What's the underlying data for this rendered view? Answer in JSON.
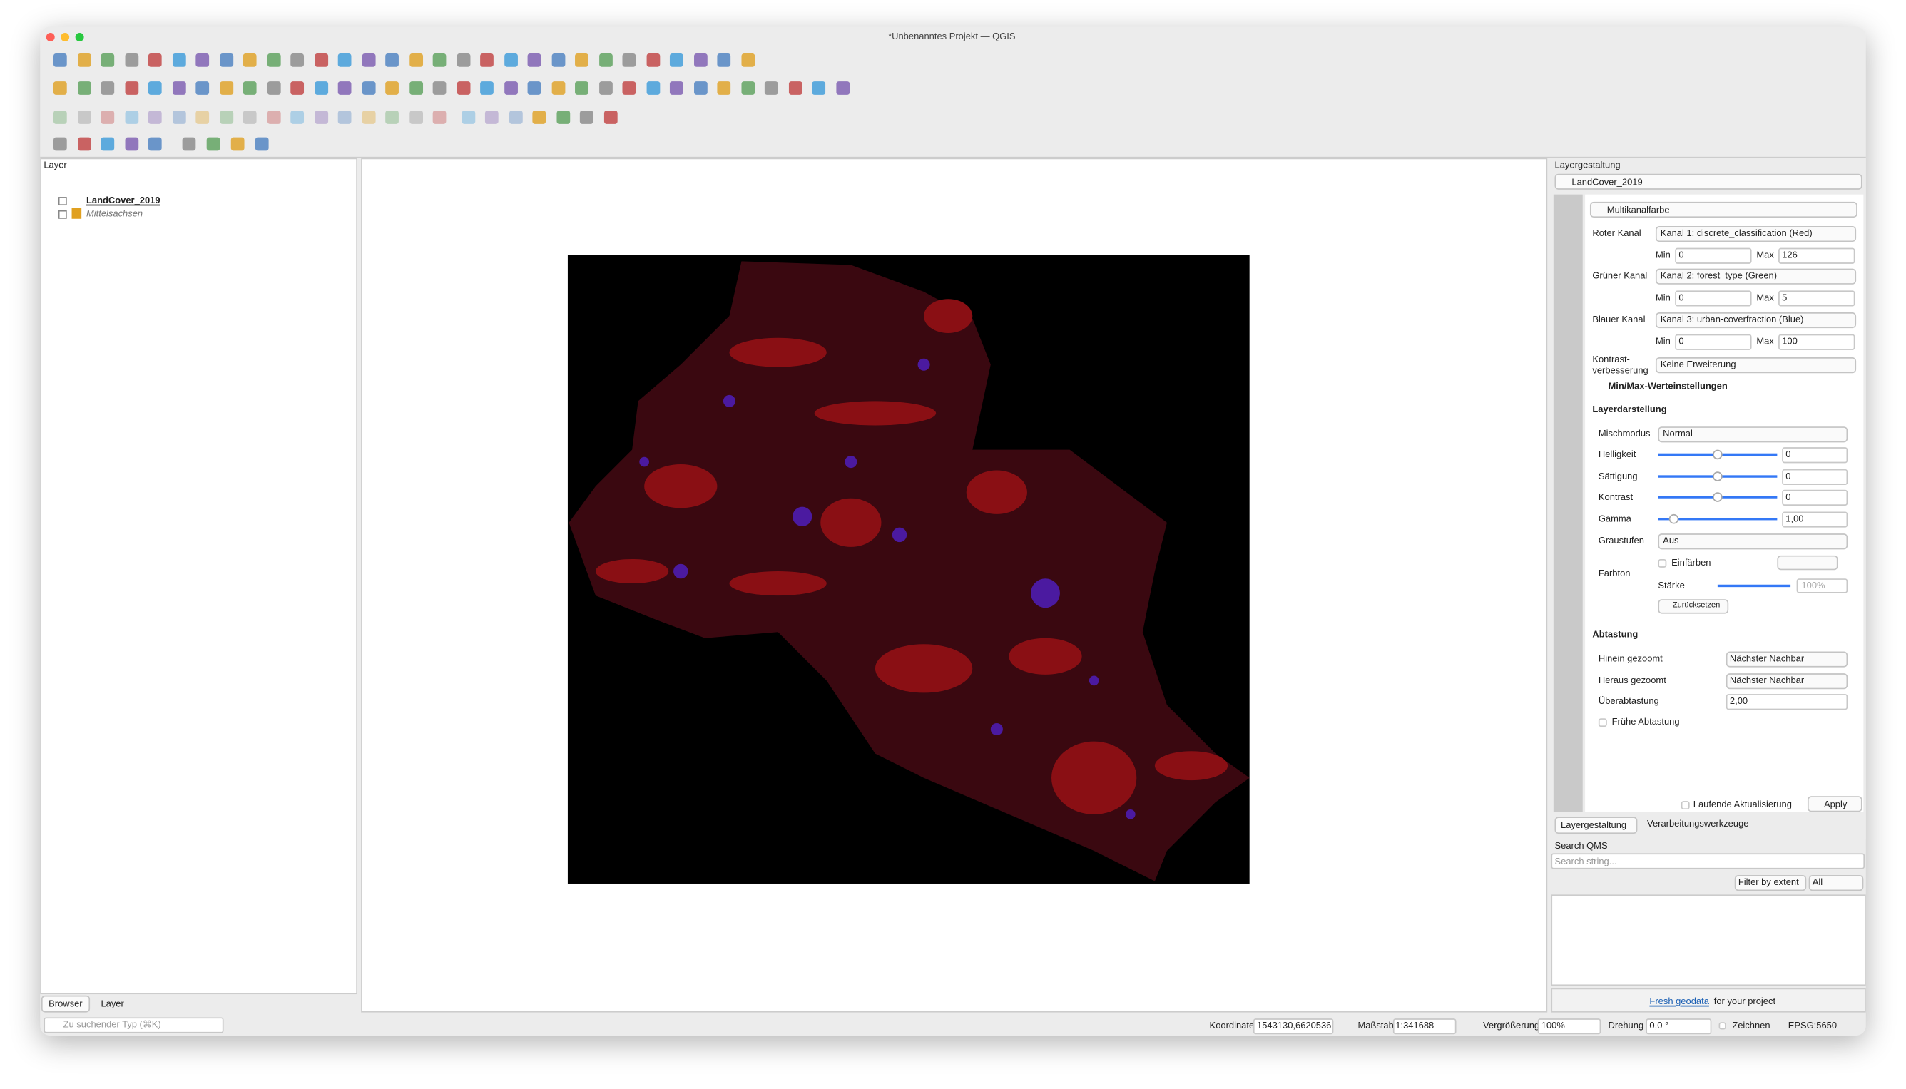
{
  "window": {
    "title": "*Unbenanntes Projekt — QGIS"
  },
  "layers_panel": {
    "title": "Layer",
    "layers": [
      "LandCover_2019",
      "Mittelsachsen"
    ],
    "tabs": [
      "Browser",
      "Layer"
    ],
    "search_placeholder": "Zu suchender Typ (⌘K)"
  },
  "style_panel": {
    "title": "Layergestaltung",
    "layer": "LandCover_2019",
    "renderer": "Multikanalfarbe",
    "channels": [
      {
        "label": "Roter Kanal",
        "band": "Kanal 1: discrete_classification (Red)",
        "min": "0",
        "max": "126"
      },
      {
        "label": "Grüner Kanal",
        "band": "Kanal 2: forest_type (Green)",
        "min": "0",
        "max": "5"
      },
      {
        "label": "Blauer Kanal",
        "band": "Kanal 3: urban-coverfraction (Blue)",
        "min": "0",
        "max": "100"
      }
    ],
    "min_label": "Min",
    "max_label": "Max",
    "contrast_label": [
      "Kontrast-",
      "verbesserung"
    ],
    "contrast_value": "Keine Erweiterung",
    "minmax_section": "Min/Max-Werteinstellungen",
    "rendering": {
      "title": "Layerdarstellung",
      "blend_label": "Mischmodus",
      "blend": "Normal",
      "sliders": [
        {
          "label": "Helligkeit",
          "value": "0"
        },
        {
          "label": "Sättigung",
          "value": "0"
        },
        {
          "label": "Kontrast",
          "value": "0"
        },
        {
          "label": "Gamma",
          "value": "1,00"
        }
      ],
      "grayscale_label": "Graustufen",
      "grayscale": "Aus",
      "colorize": "Einfärben",
      "hue_label": "Farbton",
      "strength_label": "Stärke",
      "strength": "100%",
      "reset": "Zurücksetzen"
    },
    "resampling": {
      "title": "Abtastung",
      "zoomed_in_label": "Hinein gezoomt",
      "zoomed_in": "Nächster Nachbar",
      "zoomed_out_label": "Heraus gezoomt",
      "zoomed_out": "Nächster Nachbar",
      "oversampling_label": "Überabtastung",
      "oversampling": "2,00",
      "early": "Frühe Abtastung"
    },
    "live_update": "Laufende Aktualisierung",
    "apply": "Apply",
    "tabs": [
      "Layergestaltung",
      "Verarbeitungswerkzeuge"
    ]
  },
  "qms_panel": {
    "title": "Search QMS",
    "search_placeholder": "Search string...",
    "filter": "Filter by extent",
    "scope": "All",
    "link": "Fresh geodata",
    "link_suffix": "for your project"
  },
  "status_bar": {
    "coordinate_label": "Koordinate",
    "coordinate": "1543130,6620536",
    "scale_label": "Maßstab",
    "scale": "1:341688",
    "magnifier_label": "Vergrößerung",
    "magnifier": "100%",
    "rotation_label": "Drehung",
    "rotation": "0,0 °",
    "render_label": "Zeichnen",
    "crs": "EPSG:5650"
  }
}
